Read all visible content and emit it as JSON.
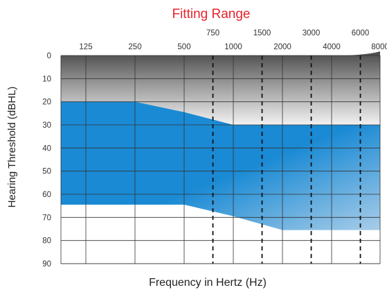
{
  "chart_data": {
    "type": "area",
    "title": "Fitting Range",
    "xlabel": "Frequency in Hertz (Hz)",
    "ylabel": "Hearing Threshold (dBHL)",
    "x_scale": "log2",
    "x_ticks_main": [
      "125",
      "250",
      "500",
      "1000",
      "2000",
      "4000",
      "8000"
    ],
    "x_ticks_inter": [
      "750",
      "1500",
      "3000",
      "6000"
    ],
    "y_ticks": [
      "0",
      "10",
      "20",
      "30",
      "40",
      "50",
      "60",
      "70",
      "80",
      "90"
    ],
    "ylim": [
      0,
      90
    ],
    "y_inverted": true,
    "grid": true,
    "fitting_range": {
      "x": [
        88,
        250,
        500,
        1000,
        2000,
        8000
      ],
      "upper_db": [
        20,
        20,
        24.5,
        30,
        30,
        30
      ],
      "lower_db": [
        64.5,
        64.5,
        64.5,
        69.5,
        75.5,
        75.5
      ]
    },
    "dashed_lines_hz": [
      750,
      1500,
      3000,
      6000
    ],
    "colors": {
      "title": "#e8242c",
      "fitting_fill": "#1a8ad4",
      "fitting_fill_light": "#a8cde9",
      "header_dark": "#5a5a5a",
      "header_light": "#f4f4f4",
      "grid": "#333333"
    }
  }
}
